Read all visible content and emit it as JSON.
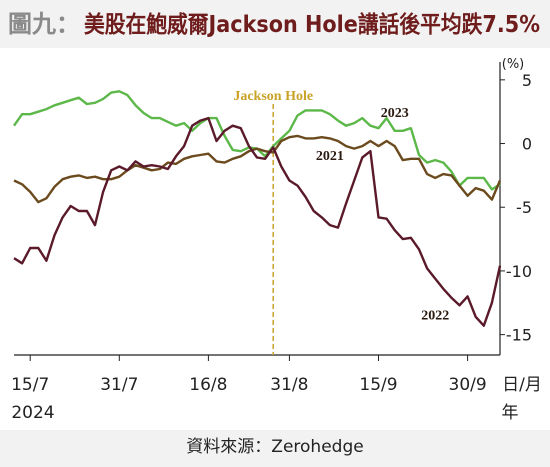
{
  "chart_data": {
    "type": "line",
    "figure_label": "圖九：",
    "title": "美股在鮑威爾Jackson Hole講話後平均跌7.5%",
    "source": "資料來源：Zerohedge",
    "y_unit": "(%)",
    "x_unit": "日/月",
    "x_year": "2024",
    "x_year_unit": "年",
    "annotation": {
      "text": "Jackson Hole",
      "category_index": 32,
      "color": "#c9a227"
    },
    "categories": [
      null,
      null,
      "15/7",
      null,
      null,
      null,
      null,
      null,
      null,
      null,
      null,
      null,
      null,
      "31/7",
      null,
      null,
      null,
      null,
      null,
      null,
      null,
      null,
      null,
      null,
      "16/8",
      null,
      null,
      null,
      null,
      null,
      null,
      null,
      null,
      null,
      "31/8",
      null,
      null,
      null,
      null,
      null,
      null,
      null,
      null,
      null,
      null,
      "15/9",
      null,
      null,
      null,
      null,
      null,
      null,
      null,
      null,
      null,
      null,
      "30/9",
      null,
      null,
      null,
      null
    ],
    "series": [
      {
        "name": "2023",
        "color": "#5cb848",
        "values": [
          1.4,
          2.3,
          2.3,
          2.5,
          2.7,
          3.0,
          3.2,
          3.4,
          3.6,
          3.1,
          3.2,
          3.5,
          4.0,
          4.1,
          3.8,
          3.0,
          2.4,
          2.0,
          2.0,
          1.7,
          1.4,
          1.6,
          1.0,
          1.6,
          2.0,
          2.0,
          0.6,
          -0.5,
          -0.6,
          -0.3,
          -0.4,
          -1.0,
          -0.2,
          0.4,
          1.0,
          2.2,
          2.6,
          2.6,
          2.6,
          2.3,
          1.8,
          1.4,
          1.6,
          2.0,
          1.4,
          1.2,
          2.0,
          1.0,
          1.0,
          1.2,
          -0.9,
          -1.5,
          -1.3,
          -1.5,
          -2.2,
          -3.3,
          -2.7,
          -2.7,
          -2.7,
          -3.6,
          -3.2
        ]
      },
      {
        "name": "2021",
        "color": "#6b4a1e",
        "values": [
          -2.9,
          -3.2,
          -3.8,
          -4.6,
          -4.3,
          -3.4,
          -2.8,
          -2.6,
          -2.5,
          -2.7,
          -2.6,
          -2.8,
          -2.8,
          -2.6,
          -2.1,
          -1.7,
          -1.9,
          -2.1,
          -2.0,
          -1.5,
          -1.6,
          -1.2,
          -1.0,
          -0.9,
          -0.8,
          -1.4,
          -1.5,
          -1.2,
          -1.0,
          -0.6,
          -0.4,
          -0.6,
          -0.7,
          0.2,
          0.5,
          0.6,
          0.4,
          0.4,
          0.5,
          0.4,
          0.2,
          -0.2,
          -0.4,
          -0.2,
          0.2,
          -0.2,
          0.2,
          -0.2,
          -1.3,
          -1.2,
          -1.2,
          -2.4,
          -2.7,
          -2.4,
          -2.5,
          -3.3,
          -4.1,
          -3.5,
          -3.7,
          -4.4,
          -2.9
        ]
      },
      {
        "name": "2022",
        "color": "#5a1a2a",
        "values": [
          -9.0,
          -9.4,
          -8.2,
          -8.2,
          -9.2,
          -7.2,
          -5.8,
          -4.9,
          -5.3,
          -5.3,
          -6.4,
          -3.8,
          -2.1,
          -1.8,
          -2.1,
          -1.4,
          -1.8,
          -1.7,
          -1.8,
          -2.0,
          -1.0,
          -0.2,
          1.4,
          1.8,
          2.0,
          0.2,
          1.0,
          1.4,
          1.2,
          -0.2,
          -1.1,
          -1.2,
          -0.3,
          -1.8,
          -2.9,
          -3.3,
          -4.2,
          -5.3,
          -5.8,
          -6.4,
          -6.6,
          -4.7,
          -2.9,
          -1.1,
          -0.6,
          -5.8,
          -5.9,
          -6.8,
          -7.5,
          -7.4,
          -8.3,
          -9.8,
          -10.6,
          -11.4,
          -12.1,
          -12.7,
          -12.0,
          -13.6,
          -14.3,
          -12.5,
          -9.6
        ]
      }
    ],
    "ylim": [
      -16.6,
      6.4
    ],
    "yticks": [
      5,
      0,
      -5,
      -10,
      -15
    ],
    "grid": false
  }
}
